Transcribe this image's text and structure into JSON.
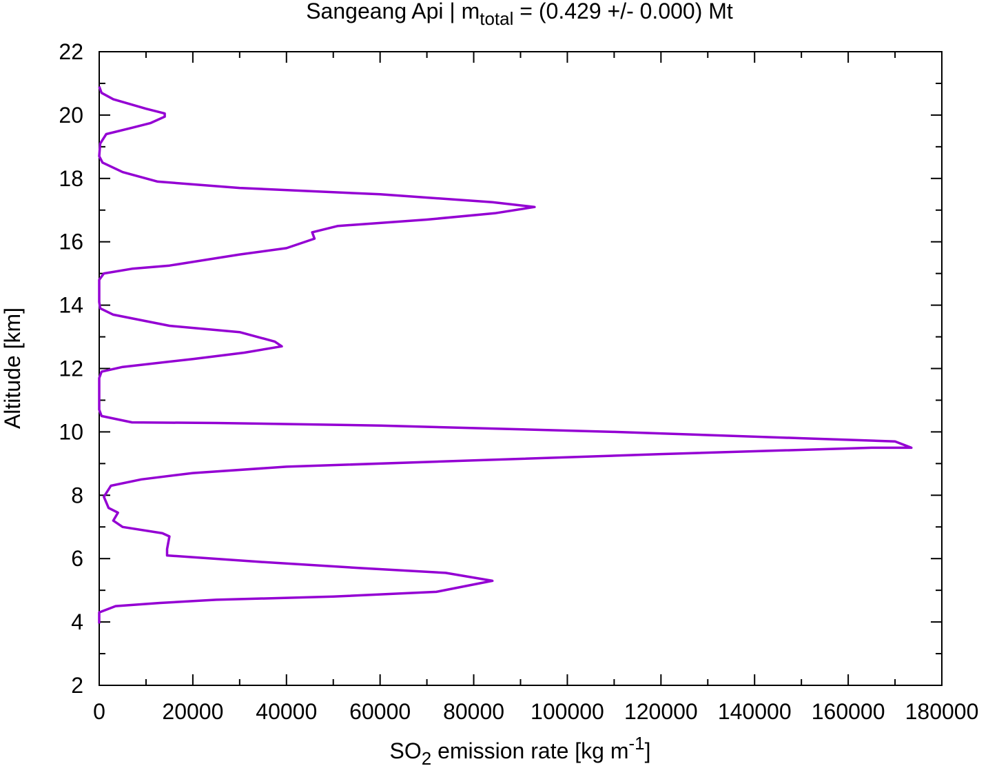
{
  "chart_data": {
    "type": "line",
    "title": {
      "prefix": "Sangeang Api | m",
      "subscript": "total",
      "suffix": " = (0.429 +/- 0.000) Mt"
    },
    "xlabel": {
      "prefix": "SO",
      "subscript": "2",
      "middle": " emission rate [kg m",
      "superscript": "-1",
      "suffix": "]"
    },
    "ylabel": "Altitude [km]",
    "xlim": [
      0,
      180000
    ],
    "ylim": [
      2,
      22
    ],
    "x_ticks": [
      "0",
      "20000",
      "40000",
      "60000",
      "80000",
      "100000",
      "120000",
      "140000",
      "160000",
      "180000"
    ],
    "y_ticks": [
      "2",
      "4",
      "6",
      "8",
      "10",
      "12",
      "14",
      "16",
      "18",
      "20",
      "22"
    ],
    "x_tick_values": [
      0,
      20000,
      40000,
      60000,
      80000,
      100000,
      120000,
      140000,
      160000,
      180000
    ],
    "y_tick_values": [
      2,
      4,
      6,
      8,
      10,
      12,
      14,
      16,
      18,
      20,
      22
    ],
    "grid": false,
    "legend": "none",
    "line_color": "#9400d3",
    "series": [
      {
        "x": [
          0,
          0,
          3500,
          13000,
          25000,
          50000,
          72000,
          84000,
          74000,
          56000,
          34000,
          14500,
          14500,
          15000,
          13500,
          5000,
          3000,
          4000,
          2000,
          1000,
          2500,
          9000,
          20000,
          40000,
          80000,
          120000,
          165000,
          173500,
          170000,
          150000,
          110000,
          60000,
          25000,
          7000,
          500,
          0,
          0,
          500,
          5000,
          20000,
          31000,
          39000,
          37500,
          30000,
          15000,
          3000,
          200,
          0,
          0,
          1000,
          7000,
          15000,
          30000,
          40000,
          46000,
          45500,
          51000,
          70000,
          84500,
          93000,
          84000,
          60000,
          30000,
          12500,
          5000,
          700,
          0,
          200,
          1500,
          7000,
          11000,
          14000,
          14000,
          10000,
          3000,
          500,
          0
        ],
        "y": [
          3.95,
          4.3,
          4.5,
          4.6,
          4.7,
          4.8,
          4.95,
          5.3,
          5.55,
          5.7,
          5.9,
          6.1,
          6.3,
          6.7,
          6.8,
          7.0,
          7.2,
          7.45,
          7.6,
          7.95,
          8.3,
          8.5,
          8.7,
          8.9,
          9.1,
          9.3,
          9.5,
          9.5,
          9.7,
          9.8,
          10.0,
          10.2,
          10.28,
          10.3,
          10.5,
          10.7,
          11.7,
          11.9,
          12.05,
          12.3,
          12.5,
          12.7,
          12.85,
          13.15,
          13.35,
          13.7,
          13.9,
          14.1,
          14.8,
          15.0,
          15.15,
          15.25,
          15.6,
          15.8,
          16.1,
          16.3,
          16.5,
          16.7,
          16.9,
          17.1,
          17.25,
          17.5,
          17.7,
          17.9,
          18.2,
          18.5,
          18.7,
          19.1,
          19.4,
          19.6,
          19.75,
          19.95,
          20.05,
          20.2,
          20.5,
          20.7,
          20.9
        ]
      }
    ]
  }
}
